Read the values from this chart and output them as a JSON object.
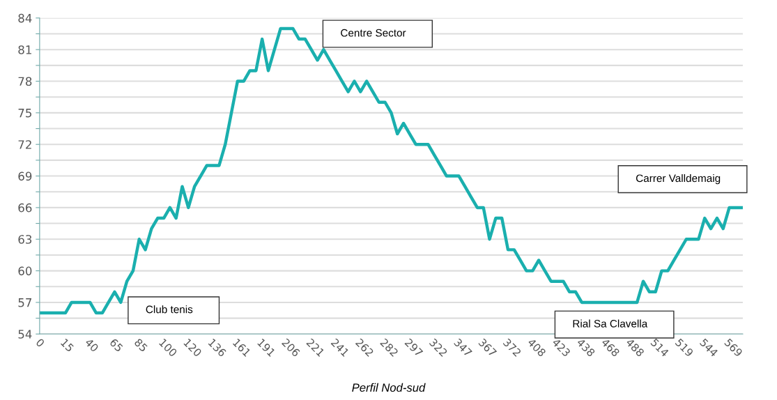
{
  "chart_data": {
    "type": "line",
    "title": "Perfil Nod-sud",
    "categories": [
      "0",
      null,
      null,
      null,
      "15",
      null,
      null,
      null,
      "40",
      null,
      null,
      null,
      "65",
      null,
      null,
      null,
      "85",
      null,
      null,
      null,
      "100",
      null,
      null,
      null,
      "120",
      null,
      null,
      null,
      "136",
      null,
      null,
      null,
      "161",
      null,
      null,
      null,
      "191",
      null,
      null,
      null,
      "206",
      null,
      null,
      null,
      "221",
      null,
      null,
      null,
      "241",
      null,
      null,
      null,
      "262",
      null,
      null,
      null,
      "282",
      null,
      null,
      null,
      "297",
      null,
      null,
      null,
      "322",
      null,
      null,
      null,
      "347",
      null,
      null,
      null,
      "367",
      null,
      null,
      null,
      "372",
      null,
      null,
      null,
      "408",
      null,
      null,
      null,
      "423",
      null,
      null,
      null,
      "438",
      null,
      null,
      null,
      "468",
      null,
      null,
      null,
      "488",
      null,
      null,
      null,
      "514",
      null,
      null,
      null,
      "519",
      null,
      null,
      null,
      "544",
      null,
      null,
      null,
      "569",
      null,
      null
    ],
    "series": [
      {
        "color": "#1aafae",
        "values": [
          56,
          56,
          56,
          56,
          56,
          57,
          57,
          57,
          57,
          56,
          56,
          57,
          58,
          57,
          59,
          60,
          63,
          62,
          64,
          65,
          65,
          66,
          65,
          68,
          66,
          68,
          69,
          70,
          70,
          70,
          72,
          75,
          78,
          78,
          79,
          79,
          82,
          79,
          81,
          83,
          83,
          83,
          82,
          82,
          81,
          80,
          81,
          80,
          79,
          78,
          77,
          78,
          77,
          78,
          77,
          76,
          76,
          75,
          73,
          74,
          73,
          72,
          72,
          72,
          71,
          70,
          69,
          69,
          69,
          68,
          67,
          66,
          66,
          63,
          65,
          65,
          62,
          62,
          61,
          60,
          60,
          61,
          60,
          59,
          59,
          59,
          58,
          58,
          57,
          57,
          57,
          57,
          57,
          57,
          57,
          57,
          57,
          57,
          59,
          58,
          58,
          60,
          60,
          61,
          62,
          63,
          63,
          63,
          65,
          64,
          65,
          64,
          66,
          66,
          66
        ]
      }
    ],
    "ylim": [
      54,
      84
    ],
    "yticks": [
      54,
      {
        "value": 55.5,
        "label": null
      },
      57,
      {
        "value": 58.5,
        "label": null
      },
      60,
      {
        "value": 61.5,
        "label": null
      },
      63,
      {
        "value": 64.5,
        "label": null
      },
      66,
      {
        "value": 67.5,
        "label": null
      },
      69,
      {
        "value": 70.5,
        "label": null
      },
      72,
      {
        "value": 73.5,
        "label": null
      },
      75,
      {
        "value": 76.5,
        "label": null
      },
      78,
      {
        "value": 79.5,
        "label": null
      },
      81,
      {
        "value": 82.5,
        "label": null
      },
      84
    ],
    "grid": "y",
    "marker": "none",
    "line_style": "solid",
    "legend": false,
    "annotations": [
      "Club tenis",
      "Centre Sector",
      "Rial Sa Clavella",
      "Carrer Valldemaig"
    ]
  }
}
